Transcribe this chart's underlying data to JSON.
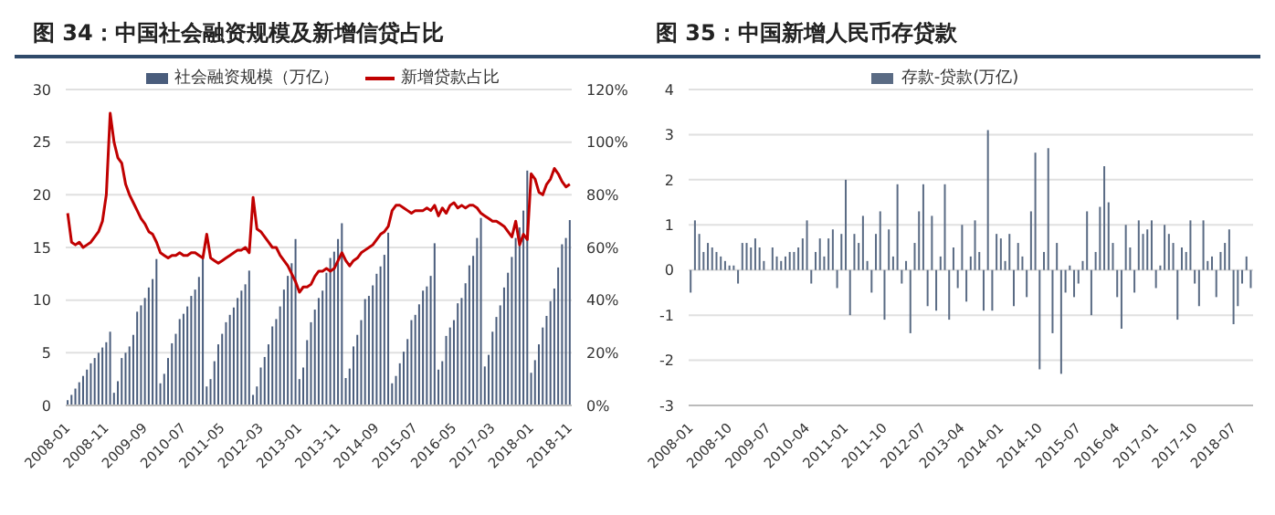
{
  "chart_data": [
    {
      "type": "bar",
      "title": "图 34：中国社会融资规模及新增信贷占比",
      "legend": "top",
      "grid": "y",
      "marker": "none",
      "line_style": "solid",
      "categories": [
        "2008-01",
        null,
        null,
        null,
        null,
        null,
        null,
        null,
        null,
        null,
        "2008-11",
        null,
        null,
        null,
        null,
        null,
        null,
        null,
        null,
        null,
        "2009-09",
        null,
        null,
        null,
        null,
        null,
        null,
        null,
        null,
        null,
        "2010-07",
        null,
        null,
        null,
        null,
        null,
        null,
        null,
        null,
        null,
        "2011-05",
        null,
        null,
        null,
        null,
        null,
        null,
        null,
        null,
        null,
        "2012-03",
        null,
        null,
        null,
        null,
        null,
        null,
        null,
        null,
        null,
        "2013-01",
        null,
        null,
        null,
        null,
        null,
        null,
        null,
        null,
        null,
        "2013-11",
        null,
        null,
        null,
        null,
        null,
        null,
        null,
        null,
        null,
        "2014-09",
        null,
        null,
        null,
        null,
        null,
        null,
        null,
        null,
        null,
        "2015-07",
        null,
        null,
        null,
        null,
        null,
        null,
        null,
        null,
        null,
        "2016-05",
        null,
        null,
        null,
        null,
        null,
        null,
        null,
        null,
        null,
        "2017-03",
        null,
        null,
        null,
        null,
        null,
        null,
        null,
        null,
        null,
        "2018-01",
        null,
        null,
        null,
        null,
        null,
        null,
        null,
        null,
        null,
        "2018-11"
      ],
      "ylim": [
        0,
        30
      ],
      "yticks": [
        0,
        5,
        10,
        15,
        20,
        25,
        30
      ],
      "y2lim": [
        0,
        120
      ],
      "y2ticks": [
        {
          "value": 0,
          "label": "0%"
        },
        {
          "value": 20,
          "label": "20%"
        },
        {
          "value": 40,
          "label": "40%"
        },
        {
          "value": 60,
          "label": "60%"
        },
        {
          "value": 80,
          "label": "80%"
        },
        {
          "value": 100,
          "label": "100%"
        },
        {
          "value": 120,
          "label": "120%"
        }
      ],
      "series": [
        {
          "name": "社会融资规模（万亿）",
          "color": "#4a5d7c",
          "values": [
            0.5,
            1.0,
            1.6,
            2.2,
            2.8,
            3.4,
            4.0,
            4.5,
            5.0,
            5.5,
            6.0,
            7.0,
            1.2,
            2.3,
            4.5,
            5.0,
            5.6,
            6.7,
            8.9,
            9.5,
            10.2,
            11.2,
            12.0,
            13.9,
            2.1,
            3.0,
            4.5,
            5.9,
            6.8,
            8.2,
            8.7,
            9.4,
            10.4,
            11.0,
            12.2,
            14.0,
            1.8,
            2.5,
            4.2,
            5.8,
            6.8,
            7.9,
            8.6,
            9.3,
            10.2,
            10.9,
            11.5,
            12.8,
            1.0,
            1.8,
            3.6,
            4.6,
            5.8,
            7.5,
            8.2,
            9.4,
            11.0,
            12.3,
            13.5,
            15.8,
            2.5,
            3.6,
            6.2,
            7.9,
            9.1,
            10.2,
            10.9,
            12.6,
            14.0,
            14.6,
            15.8,
            17.3,
            2.6,
            3.5,
            5.6,
            6.7,
            8.1,
            10.1,
            10.4,
            11.4,
            12.5,
            13.2,
            14.3,
            16.4,
            2.1,
            2.8,
            4.0,
            5.1,
            6.3,
            8.1,
            8.6,
            9.6,
            10.9,
            11.3,
            12.3,
            15.4,
            3.4,
            4.2,
            6.6,
            7.4,
            8.1,
            9.7,
            10.2,
            11.6,
            13.3,
            14.2,
            15.9,
            17.8,
            3.7,
            4.8,
            7.0,
            8.4,
            9.5,
            11.2,
            12.6,
            14.1,
            15.9,
            16.9,
            18.5,
            22.3,
            3.1,
            4.3,
            5.8,
            7.4,
            8.5,
            9.9,
            11.1,
            13.1,
            15.3,
            15.9,
            17.6
          ]
        },
        {
          "name": "新增贷款占比",
          "type": "line",
          "axis": "y2",
          "color": "#c00000",
          "values": [
            73,
            62,
            61,
            62,
            60,
            61,
            62,
            64,
            66,
            70,
            80,
            111,
            100,
            94,
            92,
            84,
            80,
            77,
            74,
            71,
            69,
            66,
            65,
            62,
            58,
            57,
            56,
            57,
            57,
            58,
            57,
            57,
            58,
            58,
            57,
            56,
            65,
            56,
            55,
            54,
            55,
            56,
            57,
            58,
            59,
            59,
            60,
            58,
            79,
            67,
            66,
            64,
            62,
            60,
            60,
            57,
            55,
            53,
            50,
            47,
            43,
            45,
            45,
            46,
            49,
            51,
            51,
            52,
            51,
            52,
            55,
            58,
            55,
            53,
            55,
            56,
            58,
            59,
            60,
            61,
            63,
            65,
            66,
            68,
            74,
            76,
            76,
            75,
            74,
            73,
            74,
            74,
            74,
            75,
            74,
            76,
            72,
            75,
            73,
            76,
            77,
            75,
            76,
            75,
            76,
            76,
            75,
            73,
            72,
            71,
            70,
            70,
            69,
            68,
            66,
            64,
            70,
            61,
            65,
            63,
            88,
            86,
            81,
            80,
            84,
            86,
            90,
            88,
            85,
            83,
            84
          ]
        }
      ]
    },
    {
      "type": "bar",
      "title": "图 35：中国新增人民币存贷款",
      "legend": "top",
      "grid": "y",
      "categories": [
        "2008-01",
        null,
        null,
        null,
        null,
        null,
        null,
        null,
        null,
        "2008-10",
        null,
        null,
        null,
        null,
        null,
        null,
        null,
        null,
        "2009-07",
        null,
        null,
        null,
        null,
        null,
        null,
        null,
        null,
        "2010-04",
        null,
        null,
        null,
        null,
        null,
        null,
        null,
        null,
        "2011-01",
        null,
        null,
        null,
        null,
        null,
        null,
        null,
        null,
        "2011-10",
        null,
        null,
        null,
        null,
        null,
        null,
        null,
        null,
        "2012-07",
        null,
        null,
        null,
        null,
        null,
        null,
        null,
        null,
        "2013-04",
        null,
        null,
        null,
        null,
        null,
        null,
        null,
        null,
        "2014-01",
        null,
        null,
        null,
        null,
        null,
        null,
        null,
        null,
        "2014-10",
        null,
        null,
        null,
        null,
        null,
        null,
        null,
        null,
        "2015-07",
        null,
        null,
        null,
        null,
        null,
        null,
        null,
        null,
        "2016-04",
        null,
        null,
        null,
        null,
        null,
        null,
        null,
        null,
        "2017-01",
        null,
        null,
        null,
        null,
        null,
        null,
        null,
        null,
        "2017-10",
        null,
        null,
        null,
        null,
        null,
        null,
        null,
        null,
        "2018-07",
        null,
        null,
        null,
        null
      ],
      "ylim": [
        -3,
        4
      ],
      "yticks": [
        -3,
        -2,
        -1,
        0,
        1,
        2,
        3,
        4
      ],
      "series": [
        {
          "name": "存款-贷款(万亿)",
          "color": "#5a6b84",
          "values": [
            -0.5,
            1.1,
            0.8,
            0.4,
            0.6,
            0.5,
            0.4,
            0.3,
            0.2,
            0.1,
            0.1,
            -0.3,
            0.6,
            0.6,
            0.5,
            0.7,
            0.5,
            0.2,
            0.0,
            0.5,
            0.3,
            0.2,
            0.3,
            0.4,
            0.4,
            0.5,
            0.7,
            1.1,
            -0.3,
            0.4,
            0.7,
            0.3,
            0.7,
            0.9,
            -0.4,
            0.8,
            2.0,
            -1.0,
            0.8,
            0.6,
            1.2,
            0.2,
            -0.5,
            0.8,
            1.3,
            -1.1,
            0.9,
            0.3,
            1.9,
            -0.3,
            0.2,
            -1.4,
            0.6,
            1.3,
            1.9,
            -0.8,
            1.2,
            -0.9,
            0.3,
            1.9,
            -1.1,
            0.5,
            -0.4,
            1.0,
            -0.7,
            0.3,
            1.1,
            0.4,
            -0.9,
            3.1,
            -0.9,
            0.8,
            0.7,
            0.2,
            0.8,
            -0.8,
            0.6,
            0.3,
            -0.6,
            1.3,
            2.6,
            -2.2,
            0.4,
            2.7,
            -1.4,
            0.6,
            -2.3,
            -0.5,
            0.1,
            -0.6,
            -0.3,
            0.2,
            1.3,
            -1.0,
            0.4,
            1.4,
            2.3,
            1.5,
            0.6,
            -0.6,
            -1.3,
            1.0,
            0.5,
            -0.5,
            1.1,
            0.8,
            0.9,
            1.1,
            -0.4,
            0.1,
            1.0,
            0.8,
            0.6,
            -1.1,
            0.5,
            0.4,
            1.1,
            -0.3,
            -0.8,
            1.1,
            0.2,
            0.3,
            -0.6,
            0.4,
            0.6,
            0.9,
            -1.2,
            -0.8,
            -0.3,
            0.3,
            -0.4
          ]
        }
      ]
    }
  ]
}
